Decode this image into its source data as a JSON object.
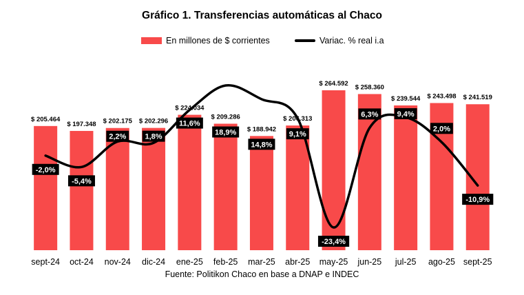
{
  "title": "Gráfico 1. Transferencias automáticas al Chaco",
  "source": "Fuente: Politikon Chaco en base a DNAP e INDEC",
  "colors": {
    "bar": "#f84a4a",
    "line": "#000000",
    "label_bg": "#000000",
    "label_text": "#ffffff"
  },
  "chart_data": {
    "type": "bar",
    "categories": [
      "sept-24",
      "oct-24",
      "nov-24",
      "dic-24",
      "ene-25",
      "feb-25",
      "mar-25",
      "abr-25",
      "may-25",
      "jun-25",
      "jul-25",
      "ago-25",
      "sept-25"
    ],
    "series": [
      {
        "name": "En millones de $ corrientes",
        "type": "bar",
        "values": [
          205464,
          197348,
          202175,
          202296,
          224034,
          209286,
          188942,
          206313,
          264592,
          258360,
          239544,
          243498,
          241519
        ],
        "labels": [
          "$ 205.464",
          "$ 197.348",
          "$ 202.175",
          "$ 202.296",
          "$ 224.034",
          "$ 209.286",
          "$ 188.942",
          "$ 206.313",
          "$ 264.592",
          "$ 258.360",
          "$ 239.544",
          "$ 243.498",
          "$ 241.519"
        ]
      },
      {
        "name": "Variac. % real i.a",
        "type": "line",
        "values": [
          -2.0,
          -5.4,
          2.2,
          1.8,
          11.6,
          18.9,
          14.8,
          9.1,
          -23.4,
          6.3,
          9.4,
          2.0,
          -10.9
        ],
        "labels": [
          "-2,0%",
          "-5,4%",
          "2,2%",
          "1,8%",
          "11,6%",
          "18,9%",
          "14,8%",
          "9,1%",
          "-23,4%",
          "6,3%",
          "9,4%",
          "2,0%",
          "-10,9%"
        ]
      }
    ],
    "legend_position": "top-center",
    "grid": false
  }
}
